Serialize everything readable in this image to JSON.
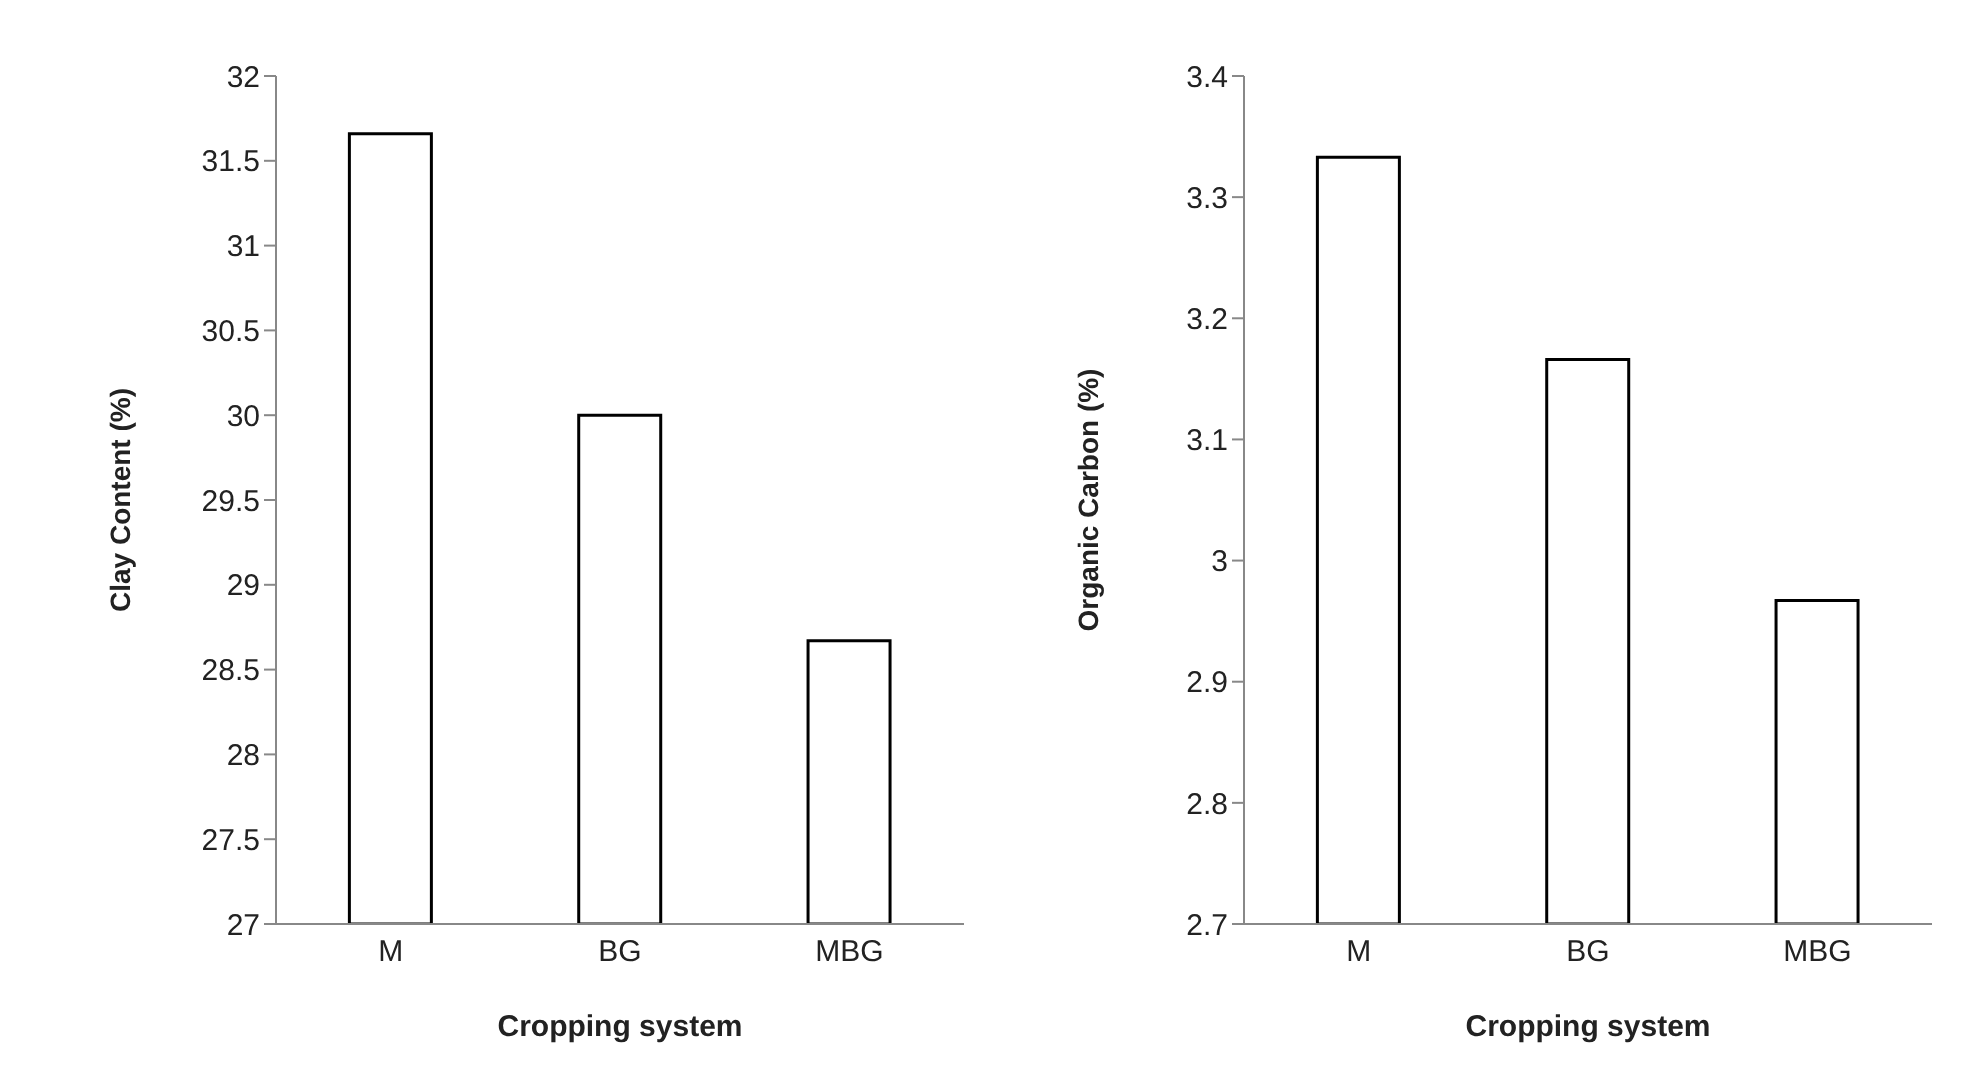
{
  "chart_data": [
    {
      "type": "bar",
      "categories": [
        "M",
        "BG",
        "MBG"
      ],
      "values": [
        31.66,
        30.0,
        28.67
      ],
      "color": "#ffffff",
      "xlabel": "Cropping system",
      "ylabel": "Clay Content (%)",
      "ylim": [
        27,
        32
      ],
      "yticks": [
        27,
        27.5,
        28,
        28.5,
        29,
        29.5,
        30,
        30.5,
        31,
        31.5,
        32
      ],
      "grid": false,
      "legend": false
    },
    {
      "type": "bar",
      "categories": [
        "M",
        "BG",
        "MBG"
      ],
      "values": [
        3.333,
        3.166,
        2.967
      ],
      "color": "#ffffff",
      "xlabel": "Cropping system",
      "ylabel": "Organic Carbon (%)",
      "ylim": [
        2.7,
        3.4
      ],
      "yticks": [
        2.7,
        2.8,
        2.9,
        3,
        3.1,
        3.2,
        3.3,
        3.4
      ],
      "grid": false,
      "legend": false
    }
  ]
}
